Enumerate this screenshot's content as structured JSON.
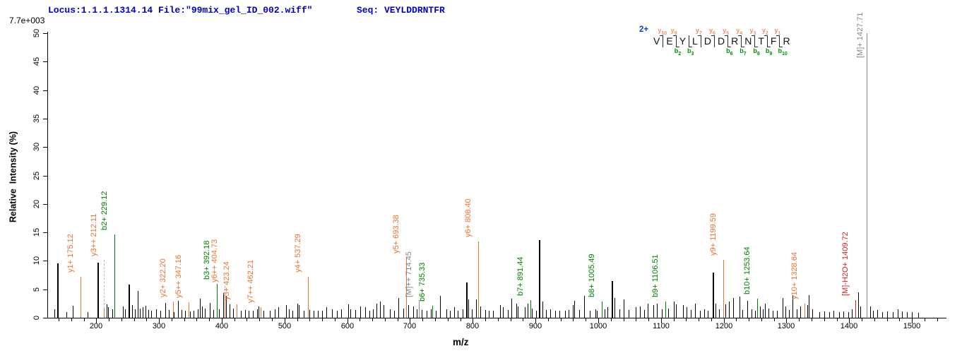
{
  "header": {
    "locus_text": "Locus:1.1.1.1314.14 File:\"99mix_gel_ID_002.wiff\"",
    "seq_text": "Seq: VEYLDDRNTFR",
    "scale_note": "7.7e+003"
  },
  "colors": {
    "header_text": "#0000BB",
    "charge_label": "#0044DD",
    "y_ion": "#E87333",
    "y_ion_seq": "#F0906A",
    "b_ion": "#008000",
    "b_ion_seq": "#009000",
    "precursor": "#858585",
    "precursor_loss": "#D42222",
    "background_peak": "#000000",
    "leader_dash": "#B9B9B9"
  },
  "sequence_annotation": {
    "charge": "2+",
    "residues": [
      "V",
      "E",
      "Y",
      "L",
      "D",
      "D",
      "R",
      "N",
      "T",
      "F",
      "R"
    ],
    "gaps": [
      {
        "y": "y10",
        "b": null
      },
      {
        "y": "y9",
        "b": "b2"
      },
      {
        "y": null,
        "b": "b3"
      },
      {
        "y": "y7",
        "b": null
      },
      {
        "y": "y6",
        "b": null
      },
      {
        "y": "y5",
        "b": "b6"
      },
      {
        "y": "y4",
        "b": "b7"
      },
      {
        "y": "y3",
        "b": "b8"
      },
      {
        "y": "y2",
        "b": "b9"
      },
      {
        "y": "y1",
        "b": "b10"
      }
    ]
  },
  "chart_data": {
    "type": "bar",
    "subtype": "ms2-mass-spectrum",
    "title": "",
    "xlabel": "m/z",
    "ylabel": "Relative  Intensity (%)",
    "max_intensity_counts": "7.7e+003",
    "x_range": [
      122,
      1555
    ],
    "y_range": [
      0,
      50
    ],
    "x_major_ticks": [
      200,
      300,
      400,
      500,
      600,
      700,
      800,
      900,
      1000,
      1100,
      1200,
      1300,
      1400,
      1500
    ],
    "x_minor_step": 20,
    "y_ticks": [
      0,
      5,
      10,
      15,
      20,
      25,
      30,
      35,
      40,
      45,
      50
    ],
    "grid": false,
    "labeled_peaks": [
      {
        "label": "y1+ 175.12",
        "mz": 175.12,
        "pct": 7.2,
        "type": "y"
      },
      {
        "label": "y3++ 212.11",
        "mz": 212.11,
        "pct": 1.6,
        "type": "y",
        "leader_pct": 10.2
      },
      {
        "label": "b2+ 229.12",
        "mz": 229.12,
        "pct": 14.7,
        "type": "b"
      },
      {
        "label": "y2+ 322.20",
        "mz": 322.2,
        "pct": 2.9,
        "type": "y"
      },
      {
        "label": "y5++ 347.16",
        "mz": 347.16,
        "pct": 2.7,
        "type": "y"
      },
      {
        "label": "b3+ 392.18",
        "mz": 392.18,
        "pct": 5.9,
        "type": "b"
      },
      {
        "label": "y6++ 404.73",
        "mz": 404.73,
        "pct": 3.7,
        "type": "y",
        "leader_pct": 5.6
      },
      {
        "label": "y3+ 423.24",
        "mz": 423.24,
        "pct": 2.3,
        "type": "y"
      },
      {
        "label": "y7++ 462.21",
        "mz": 462.21,
        "pct": 1.9,
        "type": "y"
      },
      {
        "label": "y4+ 537.29",
        "mz": 537.29,
        "pct": 7.2,
        "type": "y"
      },
      {
        "label": "y5+ 693.38",
        "mz": 693.38,
        "pct": 10.6,
        "type": "y"
      },
      {
        "label": "[M]++ 714.45",
        "mz": 714.45,
        "pct": 2.9,
        "type": "precursor"
      },
      {
        "label": "b6+ 735.33",
        "mz": 735.33,
        "pct": 2.1,
        "type": "b"
      },
      {
        "label": "y6+ 808.40",
        "mz": 808.4,
        "pct": 13.4,
        "type": "y"
      },
      {
        "label": "b7+ 891.44",
        "mz": 891.44,
        "pct": 3.1,
        "type": "b"
      },
      {
        "label": "b8+ 1005.49",
        "mz": 1005.49,
        "pct": 2.9,
        "type": "b"
      },
      {
        "label": "b9+ 1106.51",
        "mz": 1106.51,
        "pct": 2.9,
        "type": "b"
      },
      {
        "label": "y9+ 1199.59",
        "mz": 1199.59,
        "pct": 10.2,
        "type": "y"
      },
      {
        "label": "b10+ 1253.64",
        "mz": 1253.64,
        "pct": 3.4,
        "type": "b"
      },
      {
        "label": "y10+ 1328.64",
        "mz": 1328.64,
        "pct": 2.5,
        "type": "y"
      },
      {
        "label": "[M]-H2O+ 1409.72",
        "mz": 1409.72,
        "pct": 3.1,
        "type": "precursor_loss"
      },
      {
        "label": "[M]+ 1427.71",
        "mz": 1427.71,
        "pct": 50,
        "type": "precursor",
        "full_scale": true
      }
    ],
    "background_peaks": [
      [
        133,
        1.5
      ],
      [
        138,
        9.5
      ],
      [
        152,
        1.0
      ],
      [
        163,
        2.1
      ],
      [
        186,
        1.0
      ],
      [
        202,
        9.7
      ],
      [
        216,
        2.3
      ],
      [
        219,
        1.8
      ],
      [
        226,
        1.5
      ],
      [
        243,
        2.0
      ],
      [
        246,
        1.5
      ],
      [
        252,
        5.8
      ],
      [
        257,
        2.2
      ],
      [
        262,
        1.5
      ],
      [
        266,
        4.7
      ],
      [
        270,
        1.6
      ],
      [
        274,
        1.9
      ],
      [
        278,
        2.1
      ],
      [
        283,
        1.4
      ],
      [
        288,
        1.2
      ],
      [
        295,
        1.5
      ],
      [
        302,
        1.2
      ],
      [
        310,
        2.6
      ],
      [
        316,
        1.4
      ],
      [
        323,
        1.0
      ],
      [
        330,
        3.0
      ],
      [
        336,
        1.4
      ],
      [
        341,
        1.2
      ],
      [
        349,
        1.1
      ],
      [
        355,
        1.3
      ],
      [
        362,
        1.5
      ],
      [
        365,
        3.3
      ],
      [
        368,
        2.0
      ],
      [
        373,
        1.6
      ],
      [
        381,
        2.6
      ],
      [
        386,
        1.4
      ],
      [
        396,
        1.5
      ],
      [
        402,
        4.4
      ],
      [
        407,
        3.8
      ],
      [
        412,
        2.3
      ],
      [
        418,
        1.6
      ],
      [
        424,
        1.2
      ],
      [
        431,
        1.2
      ],
      [
        437,
        1.4
      ],
      [
        443,
        1.2
      ],
      [
        450,
        1.3
      ],
      [
        456,
        1.5
      ],
      [
        459,
        2.0
      ],
      [
        466,
        1.3
      ],
      [
        477,
        1.3
      ],
      [
        484,
        1.5
      ],
      [
        490,
        1.8
      ],
      [
        502,
        2.2
      ],
      [
        507,
        1.5
      ],
      [
        513,
        1.2
      ],
      [
        520,
        2.5
      ],
      [
        523,
        2.2
      ],
      [
        531,
        1.2
      ],
      [
        540,
        1.4
      ],
      [
        546,
        1.2
      ],
      [
        553,
        1.3
      ],
      [
        560,
        1.2
      ],
      [
        567,
        1.8
      ],
      [
        576,
        1.5
      ],
      [
        584,
        1.2
      ],
      [
        590,
        1.5
      ],
      [
        601,
        2.3
      ],
      [
        605,
        1.5
      ],
      [
        613,
        1.4
      ],
      [
        621,
        2.0
      ],
      [
        629,
        1.8
      ],
      [
        635,
        1.3
      ],
      [
        641,
        1.5
      ],
      [
        647,
        2.5
      ],
      [
        652,
        2.8
      ],
      [
        658,
        2.2
      ],
      [
        668,
        1.5
      ],
      [
        675,
        1.3
      ],
      [
        681,
        3.5
      ],
      [
        689,
        1.6
      ],
      [
        697,
        2.2
      ],
      [
        705,
        2.0
      ],
      [
        711,
        1.5
      ],
      [
        719,
        1.4
      ],
      [
        726,
        1.3
      ],
      [
        733,
        1.5
      ],
      [
        741,
        1.3
      ],
      [
        748,
        3.8
      ],
      [
        758,
        1.5
      ],
      [
        764,
        1.2
      ],
      [
        770,
        1.8
      ],
      [
        776,
        1.3
      ],
      [
        784,
        1.5
      ],
      [
        790,
        6.2
      ],
      [
        793,
        3.2
      ],
      [
        799,
        1.5
      ],
      [
        805,
        3.2
      ],
      [
        812,
        2.0
      ],
      [
        820,
        1.4
      ],
      [
        826,
        1.2
      ],
      [
        832,
        1.3
      ],
      [
        844,
        2.2
      ],
      [
        848,
        1.8
      ],
      [
        856,
        1.4
      ],
      [
        862,
        3.4
      ],
      [
        869,
        2.5
      ],
      [
        872,
        2.0
      ],
      [
        883,
        1.8
      ],
      [
        888,
        2.5
      ],
      [
        894,
        1.6
      ],
      [
        901,
        1.3
      ],
      [
        906,
        13.6
      ],
      [
        911,
        2.8
      ],
      [
        917,
        1.4
      ],
      [
        923,
        1.5
      ],
      [
        931,
        1.2
      ],
      [
        938,
        1.3
      ],
      [
        947,
        1.2
      ],
      [
        953,
        1.4
      ],
      [
        959,
        2.2
      ],
      [
        962,
        3.0
      ],
      [
        970,
        1.4
      ],
      [
        978,
        3.8
      ],
      [
        986,
        1.3
      ],
      [
        995,
        1.5
      ],
      [
        998,
        1.3
      ],
      [
        1010,
        1.5
      ],
      [
        1015,
        1.8
      ],
      [
        1021,
        6.5
      ],
      [
        1026,
        3.5
      ],
      [
        1034,
        1.5
      ],
      [
        1041,
        3.2
      ],
      [
        1048,
        1.4
      ],
      [
        1060,
        1.8
      ],
      [
        1066,
        2.0
      ],
      [
        1073,
        1.4
      ],
      [
        1079,
        2.5
      ],
      [
        1088,
        2.2
      ],
      [
        1094,
        2.5
      ],
      [
        1101,
        1.5
      ],
      [
        1111,
        1.6
      ],
      [
        1120,
        2.8
      ],
      [
        1124,
        2.3
      ],
      [
        1135,
        2.2
      ],
      [
        1141,
        1.8
      ],
      [
        1148,
        1.4
      ],
      [
        1154,
        2.5
      ],
      [
        1162,
        1.3
      ],
      [
        1169,
        1.5
      ],
      [
        1175,
        1.2
      ],
      [
        1182,
        8.0
      ],
      [
        1187,
        2.5
      ],
      [
        1193,
        1.5
      ],
      [
        1203,
        2.3
      ],
      [
        1208,
        2.8
      ],
      [
        1215,
        3.5
      ],
      [
        1225,
        3.7
      ],
      [
        1230,
        1.4
      ],
      [
        1238,
        3.0
      ],
      [
        1244,
        1.5
      ],
      [
        1250,
        1.3
      ],
      [
        1258,
        2.0
      ],
      [
        1262,
        1.5
      ],
      [
        1266,
        2.5
      ],
      [
        1271,
        1.6
      ],
      [
        1278,
        1.3
      ],
      [
        1285,
        1.2
      ],
      [
        1294,
        3.5
      ],
      [
        1298,
        2.0
      ],
      [
        1304,
        1.4
      ],
      [
        1310,
        4.0
      ],
      [
        1316,
        1.5
      ],
      [
        1322,
        2.0
      ],
      [
        1333,
        2.2
      ],
      [
        1336,
        4.0
      ],
      [
        1341,
        1.5
      ],
      [
        1352,
        1.0
      ],
      [
        1360,
        1.1
      ],
      [
        1368,
        1.0
      ],
      [
        1375,
        1.2
      ],
      [
        1384,
        1.0
      ],
      [
        1391,
        1.1
      ],
      [
        1398,
        1.0
      ],
      [
        1404,
        1.5
      ],
      [
        1414,
        4.5
      ],
      [
        1418,
        2.0
      ],
      [
        1433,
        2.0
      ],
      [
        1438,
        1.3
      ],
      [
        1445,
        1.4
      ],
      [
        1452,
        1.0
      ],
      [
        1460,
        1.1
      ],
      [
        1470,
        1.0
      ],
      [
        1477,
        1.5
      ],
      [
        1484,
        1.1
      ],
      [
        1492,
        1.0
      ],
      [
        1500,
        1.0
      ],
      [
        1510,
        0.9
      ]
    ]
  }
}
